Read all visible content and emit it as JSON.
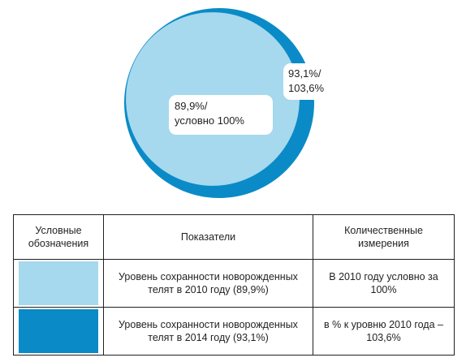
{
  "chart_data": {
    "type": "pie",
    "slices": [
      {
        "label": "89,9%/ условно 100%",
        "value": 89.9,
        "color": "#a6d8ee"
      },
      {
        "label": "93,1%/ 103,6%",
        "value": 93.1,
        "color": "#0a8bc7"
      }
    ],
    "labels": {
      "inner": [
        "89,9%/",
        "условно 100%"
      ],
      "outer": [
        "93,1%/",
        "103,6%"
      ]
    },
    "legend_position": "bottom table"
  },
  "legend_table": {
    "headers": [
      "Условные обозначения",
      "Показатели",
      "Количественные измерения"
    ],
    "rows": [
      {
        "swatch_color": "#a6d8ee",
        "indicator": "Уровень сохранности новорожденных телят в 2010 году (89,9%)",
        "measure": "В 2010 году условно за 100%"
      },
      {
        "swatch_color": "#0a8bc7",
        "indicator": "Уровень сохранности новорожденных телят в 2014 году (93,1%)",
        "measure": "в % к уровню 2010 года – 103,6%"
      }
    ]
  }
}
